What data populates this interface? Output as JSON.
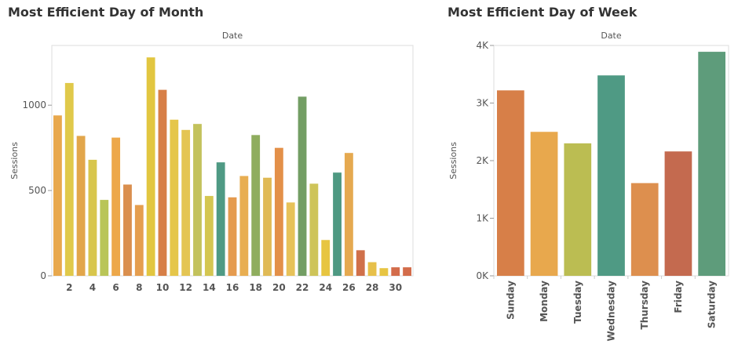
{
  "chart_data": [
    {
      "type": "bar",
      "title": "Most Efficient Day of Month",
      "subtitle": "Date",
      "ylabel": "Sessions",
      "xlabel": "",
      "ylim": [
        0,
        1350
      ],
      "y_ticks": [
        0,
        500,
        1000
      ],
      "y_tick_labels": [
        "0",
        "500",
        "1000"
      ],
      "categories": [
        1,
        2,
        3,
        4,
        5,
        6,
        7,
        8,
        9,
        10,
        11,
        12,
        13,
        14,
        15,
        16,
        17,
        18,
        19,
        20,
        21,
        22,
        23,
        24,
        25,
        26,
        27,
        28,
        29,
        30,
        31
      ],
      "x_tick_labels": [
        "2",
        "4",
        "6",
        "8",
        "10",
        "12",
        "14",
        "16",
        "18",
        "20",
        "22",
        "24",
        "26",
        "28",
        "30"
      ],
      "values": [
        940,
        1130,
        820,
        680,
        445,
        810,
        535,
        415,
        1280,
        1090,
        915,
        855,
        890,
        468,
        665,
        460,
        585,
        825,
        575,
        750,
        430,
        1050,
        540,
        210,
        605,
        720,
        150,
        80,
        45,
        50,
        50
      ],
      "colors": [
        "#e8a84d",
        "#e0c94a",
        "#e2a64b",
        "#d8c64c",
        "#b9c558",
        "#eda84a",
        "#da8f4e",
        "#e59e4f",
        "#e2c640",
        "#d77f47",
        "#e5c64a",
        "#e4c553",
        "#c3c25c",
        "#d4c651",
        "#4f9a84",
        "#e59b4f",
        "#e8ae52",
        "#8fad5e",
        "#e0ba56",
        "#e39049",
        "#e7c259",
        "#739e64",
        "#cec459",
        "#e7c541",
        "#4e9982",
        "#e5a950",
        "#d0704a",
        "#e7c04a",
        "#e7c543",
        "#d36c4b",
        "#d36c4b"
      ]
    },
    {
      "type": "bar",
      "title": "Most Efficient Day of Week",
      "subtitle": "Date",
      "ylabel": "Sessions",
      "xlabel": "",
      "ylim": [
        0,
        4000
      ],
      "y_ticks": [
        0,
        1000,
        2000,
        3000,
        4000
      ],
      "y_tick_labels": [
        "0K",
        "1K",
        "2K",
        "3K",
        "4K"
      ],
      "categories": [
        "Sunday",
        "Monday",
        "Tuesday",
        "Wednesday",
        "Thursday",
        "Friday",
        "Saturday"
      ],
      "values": [
        3220,
        2500,
        2300,
        3480,
        1610,
        2160,
        3890
      ],
      "colors": [
        "#d77f48",
        "#e8a84d",
        "#bbbd52",
        "#4f9a84",
        "#dd8f4e",
        "#c46a4f",
        "#5e9c7b"
      ]
    }
  ]
}
